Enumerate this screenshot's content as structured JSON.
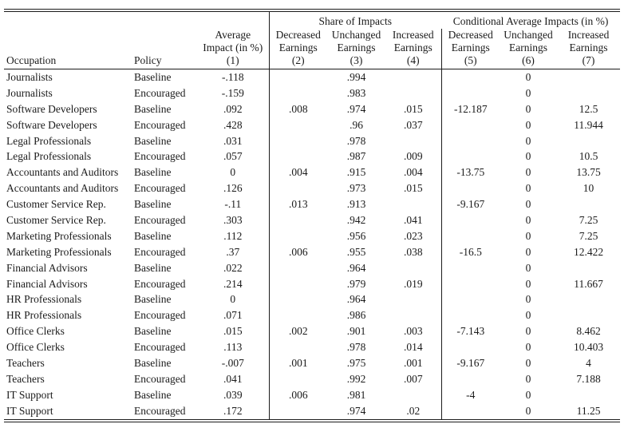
{
  "page": {
    "background": "#ffffff",
    "text_color": "#1b1b1b"
  },
  "table": {
    "group_headers": {
      "share_of_impacts": "Share of Impacts",
      "conditional_avg": "Conditional Average Impacts (in %)"
    },
    "column_headers": {
      "occupation": "Occupation",
      "policy": "Policy",
      "avg_impact_lines": [
        "Average",
        "Impact (in %)"
      ],
      "decreased_lines": [
        "Decreased",
        "Earnings"
      ],
      "unchanged_lines": [
        "Unchanged",
        "Earnings"
      ],
      "increased_lines": [
        "Increased",
        "Earnings"
      ]
    },
    "column_numbers": [
      "(1)",
      "(2)",
      "(3)",
      "(4)",
      "(5)",
      "(6)",
      "(7)"
    ],
    "rows": [
      [
        "Journalists",
        "Baseline",
        "-.118",
        "",
        ".994",
        "",
        "",
        "0",
        ""
      ],
      [
        "Journalists",
        "Encouraged",
        "-.159",
        "",
        ".983",
        "",
        "",
        "0",
        ""
      ],
      [
        "Software Developers",
        "Baseline",
        ".092",
        ".008",
        ".974",
        ".015",
        "-12.187",
        "0",
        "12.5"
      ],
      [
        "Software Developers",
        "Encouraged",
        ".428",
        "",
        ".96",
        ".037",
        "",
        "0",
        "11.944"
      ],
      [
        "Legal Professionals",
        "Baseline",
        ".031",
        "",
        ".978",
        "",
        "",
        "0",
        ""
      ],
      [
        "Legal Professionals",
        "Encouraged",
        ".057",
        "",
        ".987",
        ".009",
        "",
        "0",
        "10.5"
      ],
      [
        "Accountants and Auditors",
        "Baseline",
        "0",
        ".004",
        ".915",
        ".004",
        "-13.75",
        "0",
        "13.75"
      ],
      [
        "Accountants and Auditors",
        "Encouraged",
        ".126",
        "",
        ".973",
        ".015",
        "",
        "0",
        "10"
      ],
      [
        "Customer Service Rep.",
        "Baseline",
        "-.11",
        ".013",
        ".913",
        "",
        "-9.167",
        "0",
        ""
      ],
      [
        "Customer Service Rep.",
        "Encouraged",
        ".303",
        "",
        ".942",
        ".041",
        "",
        "0",
        "7.25"
      ],
      [
        "Marketing Professionals",
        "Baseline",
        ".112",
        "",
        ".956",
        ".023",
        "",
        "0",
        "7.25"
      ],
      [
        "Marketing Professionals",
        "Encouraged",
        ".37",
        ".006",
        ".955",
        ".038",
        "-16.5",
        "0",
        "12.422"
      ],
      [
        "Financial Advisors",
        "Baseline",
        ".022",
        "",
        ".964",
        "",
        "",
        "0",
        ""
      ],
      [
        "Financial Advisors",
        "Encouraged",
        ".214",
        "",
        ".979",
        ".019",
        "",
        "0",
        "11.667"
      ],
      [
        "HR Professionals",
        "Baseline",
        "0",
        "",
        ".964",
        "",
        "",
        "0",
        ""
      ],
      [
        "HR Professionals",
        "Encouraged",
        ".071",
        "",
        ".986",
        "",
        "",
        "0",
        ""
      ],
      [
        "Office Clerks",
        "Baseline",
        ".015",
        ".002",
        ".901",
        ".003",
        "-7.143",
        "0",
        "8.462"
      ],
      [
        "Office Clerks",
        "Encouraged",
        ".113",
        "",
        ".978",
        ".014",
        "",
        "0",
        "10.403"
      ],
      [
        "Teachers",
        "Baseline",
        "-.007",
        ".001",
        ".975",
        ".001",
        "-9.167",
        "0",
        "4"
      ],
      [
        "Teachers",
        "Encouraged",
        ".041",
        "",
        ".992",
        ".007",
        "",
        "0",
        "7.188"
      ],
      [
        "IT Support",
        "Baseline",
        ".039",
        ".006",
        ".981",
        "",
        "-4",
        "0",
        ""
      ],
      [
        "IT Support",
        "Encouraged",
        ".172",
        "",
        ".974",
        ".02",
        "",
        "0",
        "11.25"
      ]
    ]
  }
}
